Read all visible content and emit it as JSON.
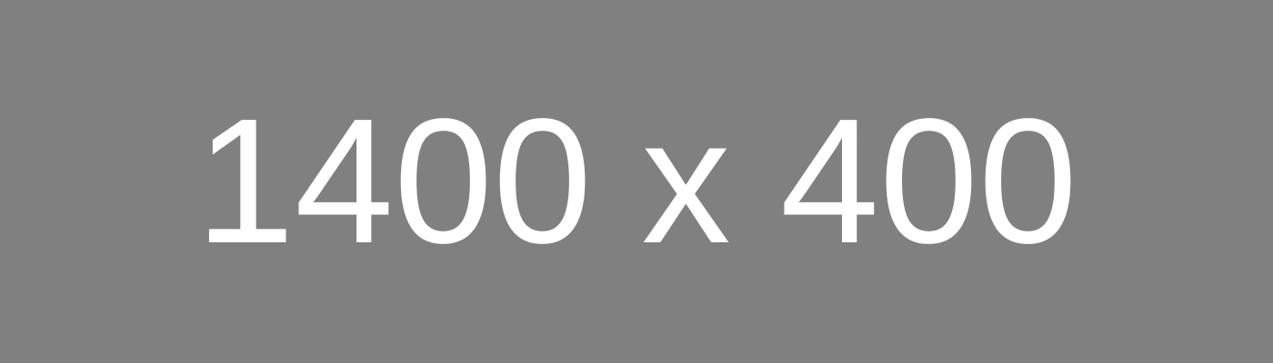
{
  "placeholder": {
    "text": "1400 x 400",
    "background_color": "#808080",
    "text_color": "#FFFFFF"
  }
}
